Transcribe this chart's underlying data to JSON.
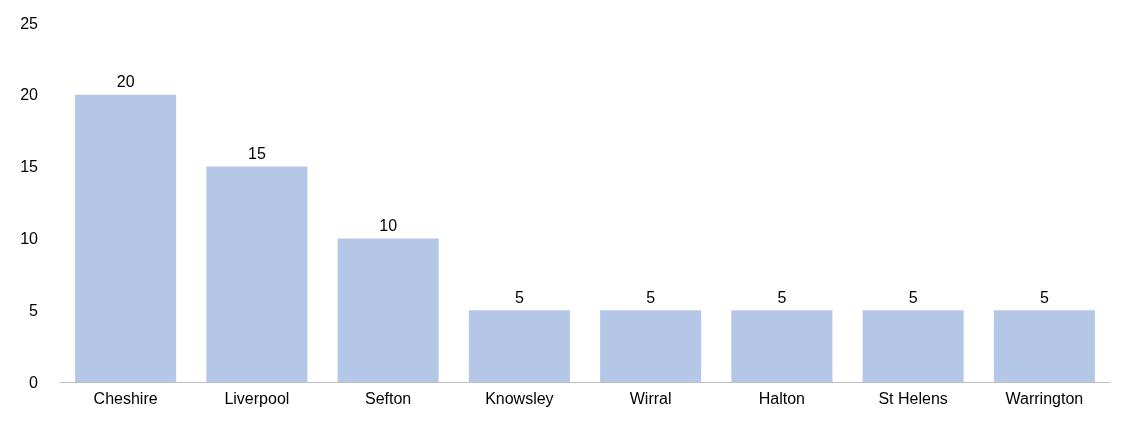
{
  "chart_data": {
    "type": "bar",
    "categories": [
      "Cheshire",
      "Liverpool",
      "Sefton",
      "Knowsley",
      "Wirral",
      "Halton",
      "St Helens",
      "Warrington"
    ],
    "values": [
      20,
      15,
      10,
      5,
      5,
      5,
      5,
      5
    ],
    "color": "#b4c7e7",
    "ylim": [
      0,
      25
    ],
    "yticks": [
      0,
      5,
      10,
      15,
      20,
      25
    ],
    "grid": false,
    "data_labels": true
  }
}
